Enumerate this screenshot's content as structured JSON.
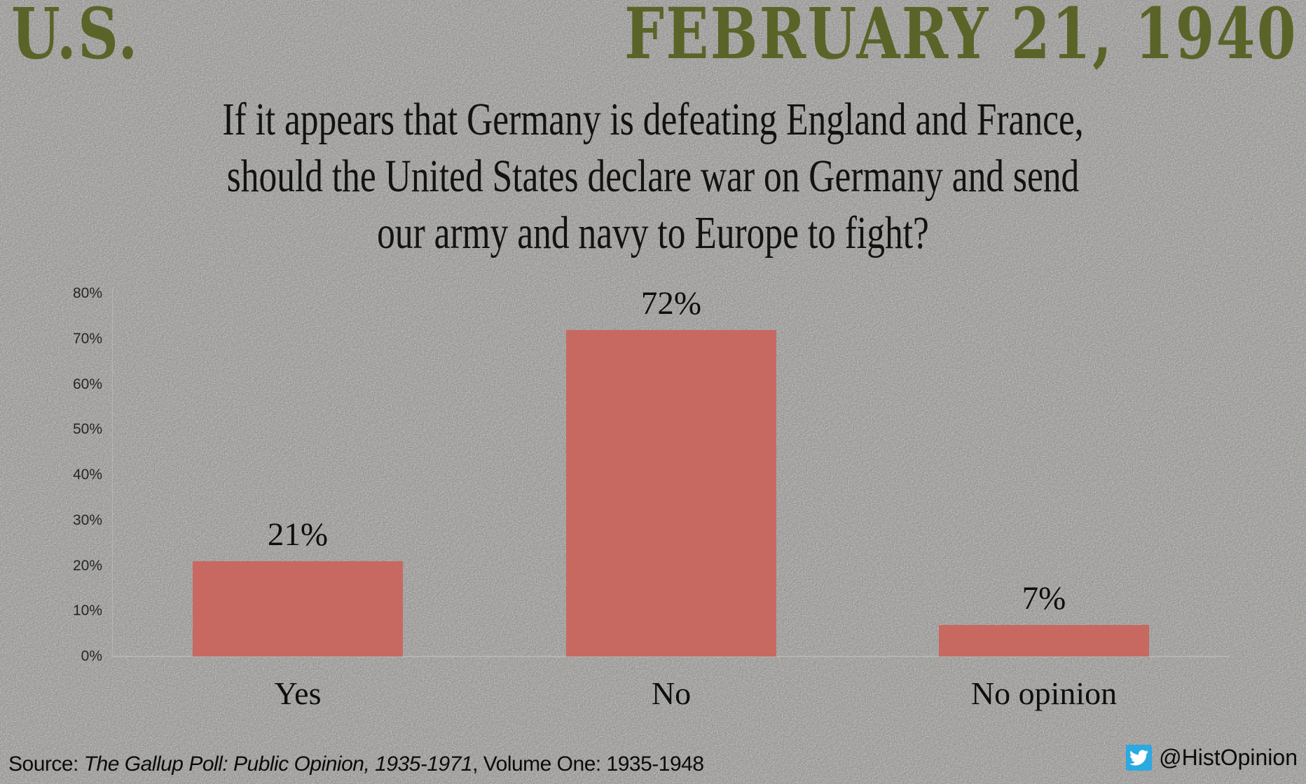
{
  "header": {
    "country": "U.S.",
    "date": "FEBRUARY 21, 1940",
    "accent_color": "#5a6428"
  },
  "question": {
    "lines": [
      "If it appears that Germany is defeating England and France,",
      "should the United States declare war on Germany and send",
      "our army and navy to Europe to fight?"
    ]
  },
  "chart_data": {
    "type": "bar",
    "title": "If it appears that Germany is defeating England and France, should the United States declare war on Germany and send our army and navy to Europe to fight?",
    "categories": [
      "Yes",
      "No",
      "No opinion"
    ],
    "values": [
      21,
      72,
      7
    ],
    "value_labels": [
      "21%",
      "72%",
      "7%"
    ],
    "y_ticks": [
      "0%",
      "10%",
      "20%",
      "30%",
      "40%",
      "50%",
      "60%",
      "70%",
      "80%"
    ],
    "ylim": [
      0,
      80
    ],
    "grid": false,
    "legend": false,
    "bar_color": "#c86961",
    "axis_color": "#b5b5b2",
    "xlabel": "",
    "ylabel": ""
  },
  "footer": {
    "source_label": "Source: ",
    "source_title_italic": "The Gallup Poll: Public Opinion, 1935-1971",
    "source_rest": ", Volume One: 1935-1948",
    "twitter_handle": "@HistOpinion",
    "twitter_color": "#2ba9e1"
  }
}
